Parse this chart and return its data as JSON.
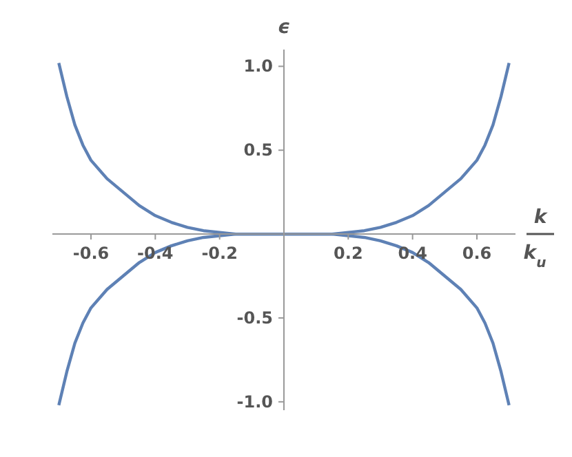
{
  "chart_data": {
    "type": "line",
    "xlabel": "k\nk$_{u}$",
    "ylabel": "ϵ",
    "xlim": [
      -0.72,
      0.72
    ],
    "ylim": [
      -1.05,
      1.1
    ],
    "xticks": [
      -0.6,
      -0.4,
      -0.2,
      0.2,
      0.4,
      0.6
    ],
    "yticks": [
      {
        "value": -1,
        "label": "-1.0"
      },
      -0.5,
      0.5,
      {
        "value": 1,
        "label": "1.0"
      }
    ],
    "grid": false,
    "legend": false,
    "marker": "none",
    "line_style": "solid",
    "series": [
      {
        "color": "#5e81b5",
        "x": [
          -0.7,
          -0.675,
          -0.65,
          -0.625,
          -0.6,
          -0.55,
          -0.5,
          -0.45,
          -0.4,
          -0.35,
          -0.3,
          -0.25,
          -0.2,
          -0.15,
          -0.1,
          0,
          0.1,
          0.15,
          0.2,
          0.25,
          0.3,
          0.35,
          0.4,
          0.45,
          0.5,
          0.55,
          0.6,
          0.625,
          0.65,
          0.675,
          0.7
        ],
        "values": [
          1.02,
          0.82,
          0.65,
          0.53,
          0.44,
          0.33,
          0.25,
          0.17,
          0.11,
          0.07,
          0.04,
          0.02,
          0.01,
          0,
          0,
          0,
          0,
          0,
          0.01,
          0.02,
          0.04,
          0.07,
          0.11,
          0.17,
          0.25,
          0.33,
          0.44,
          0.53,
          0.65,
          0.82,
          1.02
        ]
      },
      {
        "color": "#5e81b5",
        "x": [
          -0.7,
          -0.675,
          -0.65,
          -0.625,
          -0.6,
          -0.55,
          -0.5,
          -0.45,
          -0.4,
          -0.35,
          -0.3,
          -0.25,
          -0.2,
          -0.15,
          -0.1,
          0,
          0.1,
          0.15,
          0.2,
          0.25,
          0.3,
          0.35,
          0.4,
          0.45,
          0.5,
          0.55,
          0.6,
          0.625,
          0.65,
          0.675,
          0.7
        ],
        "values": [
          -1.02,
          -0.82,
          -0.65,
          -0.53,
          -0.44,
          -0.33,
          -0.25,
          -0.17,
          -0.11,
          -0.07,
          -0.04,
          -0.02,
          -0.01,
          0,
          0,
          0,
          0,
          0,
          -0.01,
          -0.02,
          -0.04,
          -0.07,
          -0.11,
          -0.17,
          -0.25,
          -0.33,
          -0.44,
          -0.53,
          -0.65,
          -0.82,
          -1.02
        ]
      }
    ]
  }
}
